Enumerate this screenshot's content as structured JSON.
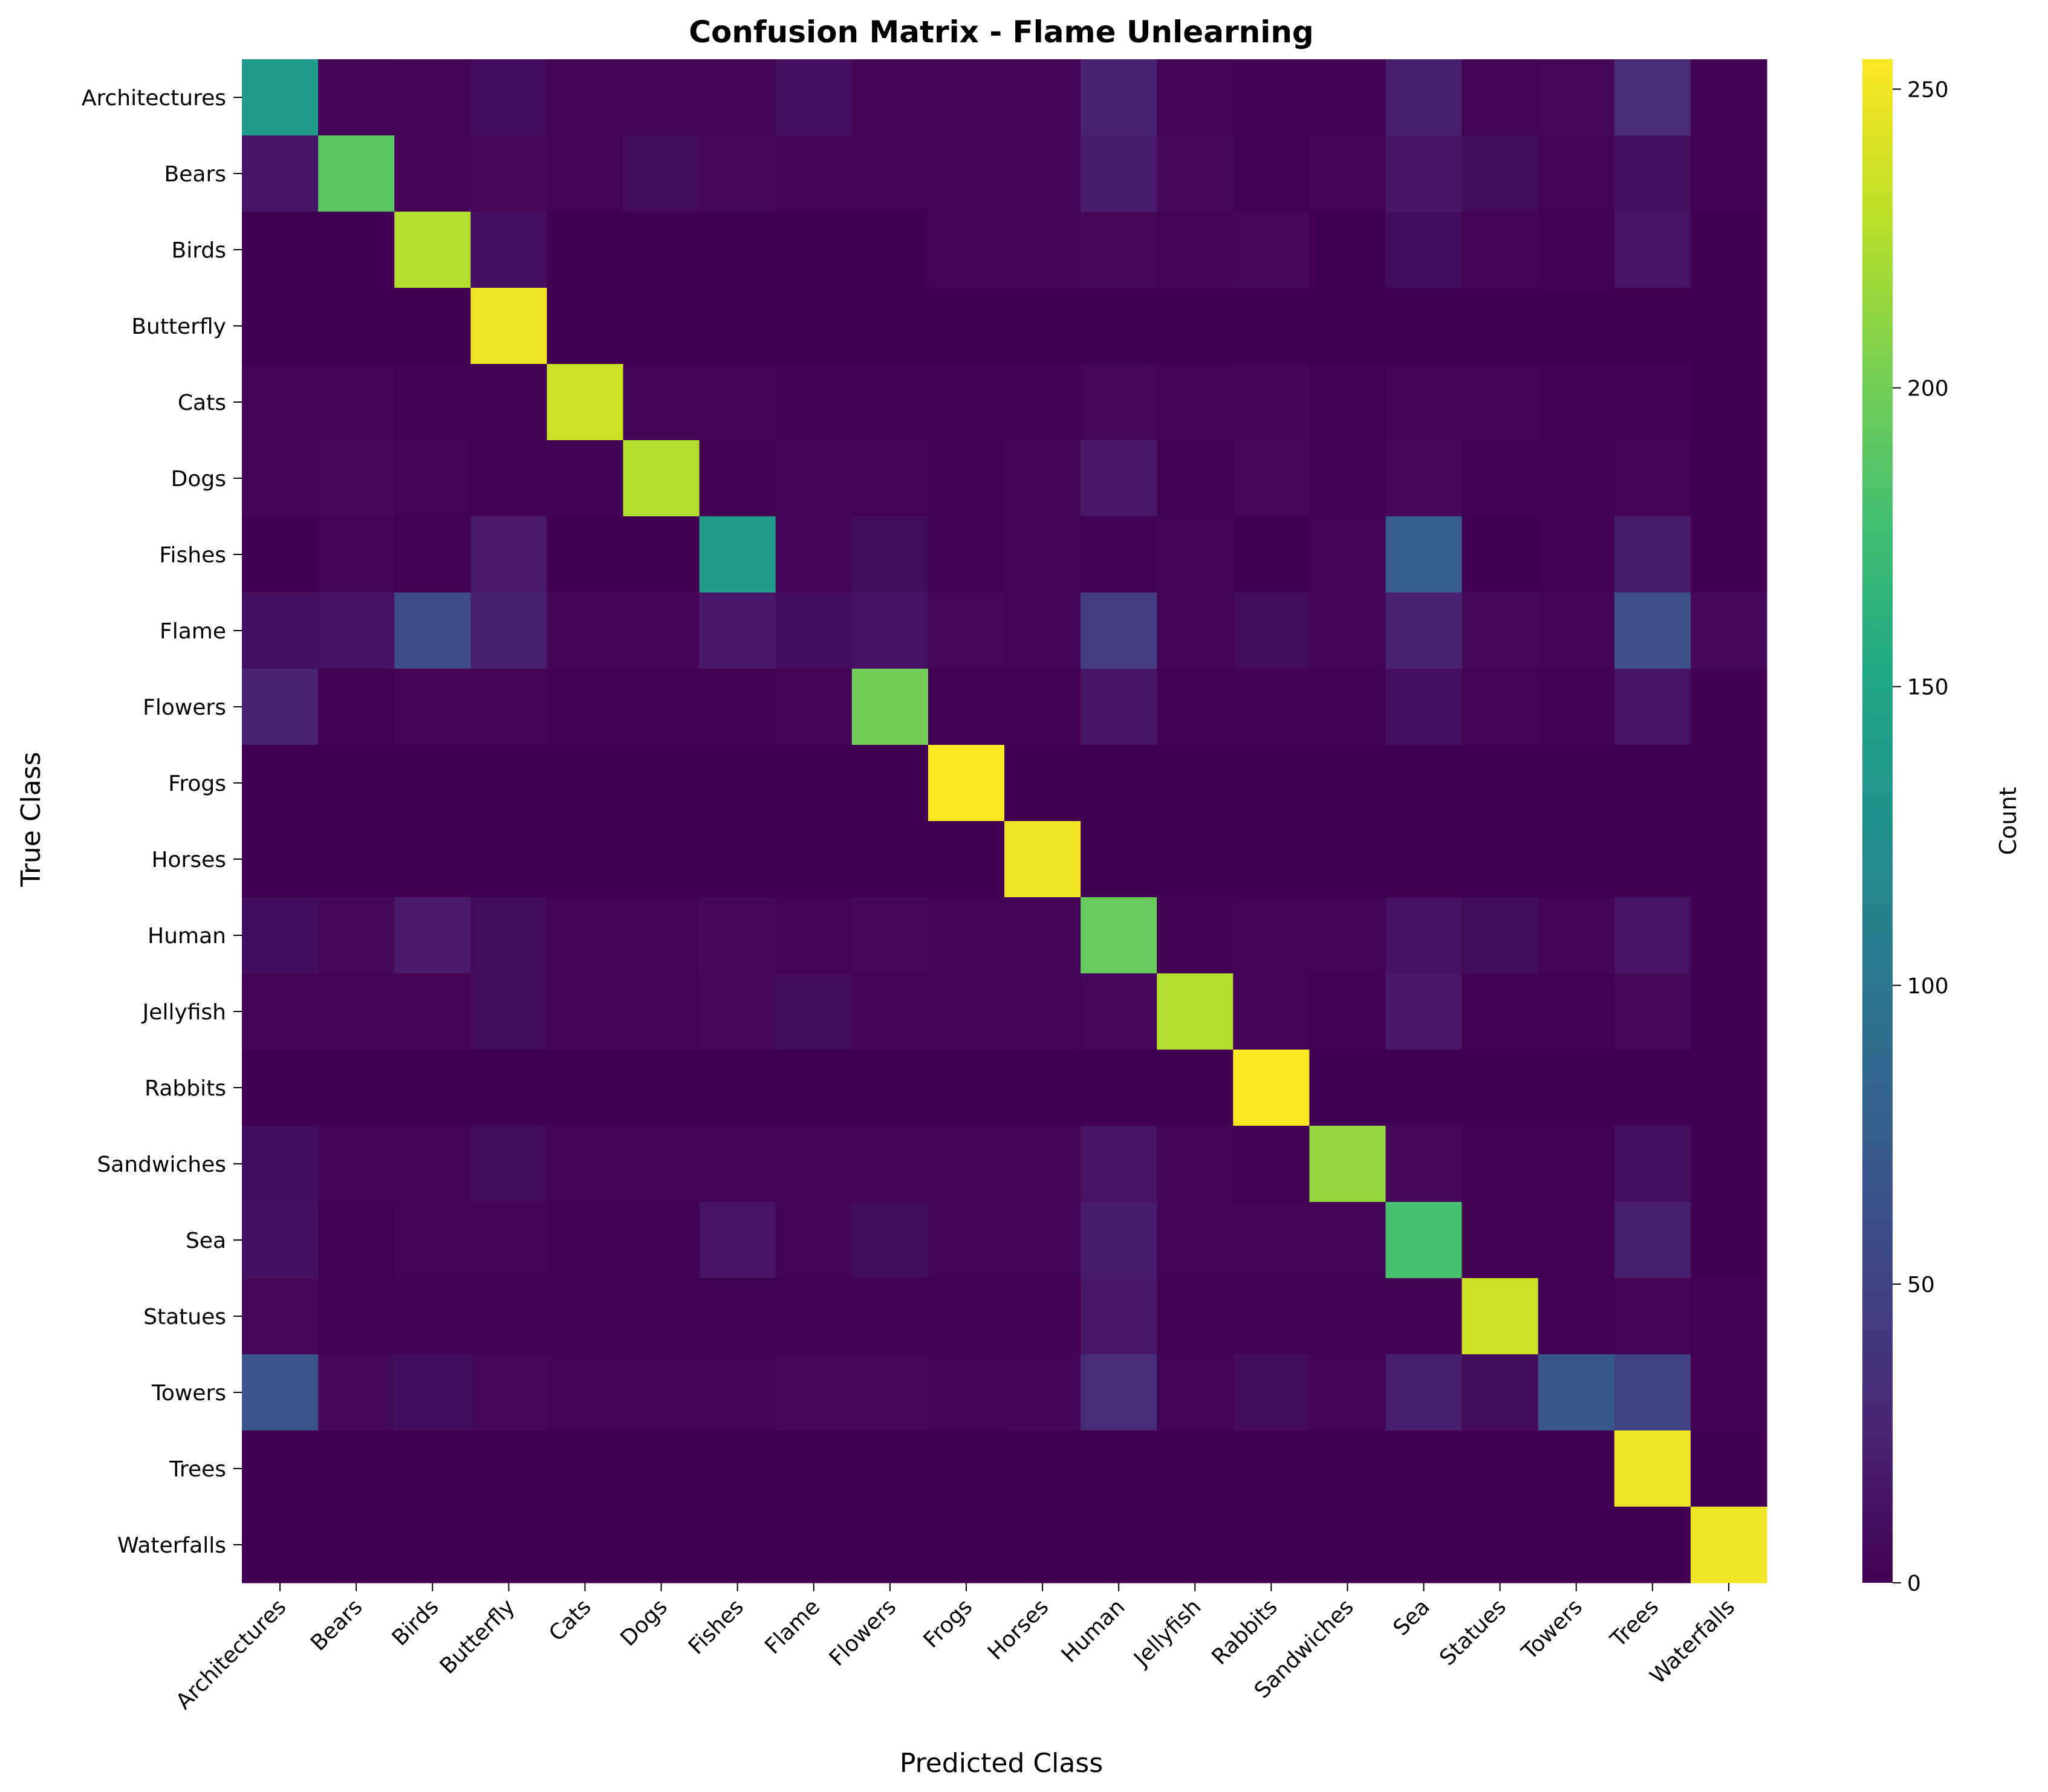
{
  "chart_data": {
    "type": "heatmap",
    "title": "Confusion Matrix - Flame Unlearning",
    "xlabel": "Predicted Class",
    "ylabel": "True Class",
    "colorbar_label": "Count",
    "colormap": "viridis",
    "vmin": 0,
    "vmax": 255,
    "colorbar_ticks": [
      0,
      50,
      100,
      150,
      200,
      250
    ],
    "classes": [
      "Architectures",
      "Bears",
      "Birds",
      "Butterfly",
      "Cats",
      "Dogs",
      "Fishes",
      "Flame",
      "Flowers",
      "Frogs",
      "Horses",
      "Human",
      "Jellyfish",
      "Rabbits",
      "Sandwiches",
      "Sea",
      "Statues",
      "Towers",
      "Trees",
      "Waterfalls"
    ],
    "matrix": [
      [
        138,
        3,
        4,
        9,
        2,
        2,
        3,
        10,
        2,
        2,
        2,
        25,
        2,
        1,
        1,
        22,
        2,
        5,
        30,
        1
      ],
      [
        14,
        190,
        2,
        5,
        3,
        8,
        6,
        2,
        2,
        2,
        4,
        20,
        6,
        1,
        3,
        15,
        8,
        2,
        10,
        1
      ],
      [
        0,
        0,
        225,
        10,
        0,
        0,
        0,
        0,
        0,
        2,
        3,
        6,
        2,
        5,
        0,
        9,
        2,
        1,
        14,
        0
      ],
      [
        0,
        0,
        0,
        250,
        0,
        0,
        0,
        0,
        0,
        0,
        0,
        0,
        0,
        0,
        0,
        0,
        0,
        0,
        0,
        0
      ],
      [
        3,
        3,
        1,
        1,
        235,
        2,
        3,
        1,
        1,
        1,
        1,
        6,
        2,
        4,
        1,
        3,
        2,
        1,
        1,
        0
      ],
      [
        4,
        6,
        3,
        1,
        1,
        225,
        1,
        2,
        2,
        1,
        3,
        17,
        1,
        5,
        1,
        5,
        1,
        1,
        2,
        0
      ],
      [
        0,
        2,
        1,
        18,
        0,
        0,
        140,
        3,
        8,
        1,
        2,
        1,
        2,
        0,
        2,
        75,
        0,
        1,
        20,
        0
      ],
      [
        11,
        12,
        58,
        22,
        4,
        4,
        16,
        9,
        12,
        5,
        4,
        45,
        3,
        8,
        3,
        25,
        6,
        3,
        60,
        6
      ],
      [
        25,
        1,
        2,
        2,
        1,
        1,
        1,
        3,
        200,
        1,
        1,
        15,
        1,
        1,
        1,
        10,
        3,
        1,
        14,
        0
      ],
      [
        0,
        0,
        0,
        0,
        0,
        0,
        0,
        0,
        0,
        255,
        0,
        0,
        0,
        0,
        0,
        0,
        0,
        0,
        0,
        0
      ],
      [
        0,
        0,
        0,
        0,
        0,
        0,
        0,
        0,
        0,
        0,
        250,
        0,
        0,
        0,
        0,
        0,
        0,
        0,
        0,
        0
      ],
      [
        9,
        5,
        18,
        8,
        4,
        4,
        6,
        3,
        5,
        2,
        3,
        195,
        1,
        3,
        2,
        12,
        7,
        4,
        14,
        0
      ],
      [
        4,
        2,
        4,
        7,
        2,
        2,
        6,
        7,
        3,
        2,
        2,
        5,
        225,
        2,
        1,
        16,
        1,
        1,
        6,
        0
      ],
      [
        0,
        0,
        0,
        0,
        0,
        0,
        0,
        0,
        0,
        0,
        0,
        0,
        0,
        255,
        0,
        0,
        0,
        0,
        0,
        0
      ],
      [
        9,
        4,
        3,
        8,
        2,
        2,
        3,
        4,
        4,
        2,
        2,
        13,
        4,
        1,
        215,
        5,
        1,
        1,
        10,
        0
      ],
      [
        11,
        1,
        2,
        4,
        1,
        1,
        14,
        3,
        8,
        2,
        2,
        20,
        2,
        2,
        2,
        180,
        1,
        1,
        22,
        0
      ],
      [
        5,
        1,
        1,
        1,
        1,
        1,
        1,
        1,
        1,
        1,
        1,
        16,
        1,
        1,
        1,
        1,
        235,
        1,
        3,
        1
      ],
      [
        65,
        6,
        9,
        6,
        2,
        2,
        3,
        5,
        5,
        3,
        4,
        30,
        3,
        7,
        3,
        22,
        8,
        70,
        50,
        1
      ],
      [
        0,
        0,
        0,
        0,
        0,
        0,
        0,
        0,
        0,
        0,
        0,
        0,
        0,
        0,
        0,
        0,
        0,
        0,
        250,
        0
      ],
      [
        0,
        0,
        0,
        0,
        0,
        0,
        0,
        0,
        0,
        0,
        0,
        0,
        0,
        0,
        0,
        0,
        0,
        0,
        0,
        250
      ]
    ],
    "grid": false
  }
}
